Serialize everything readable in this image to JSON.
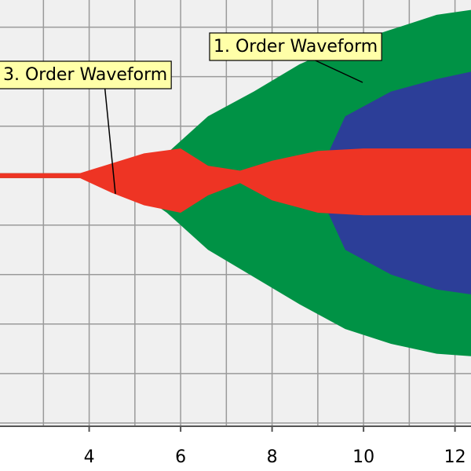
{
  "chart_data": {
    "type": "area",
    "title": "",
    "xlabel": "",
    "ylabel": "",
    "xlim": [
      2.05,
      12.35
    ],
    "ylim": [
      -5.05,
      3.55
    ],
    "grid": true,
    "x_ticks": [
      4,
      6,
      8,
      10,
      12
    ],
    "colors": {
      "plot_background": "#f0f0f0",
      "gridline": "#9a9a9a",
      "axis": "#555555",
      "order1": "#009245",
      "order2": "#2c3e98",
      "order3": "#ee3424",
      "callout_fill": "#ffffa8"
    },
    "series": [
      {
        "name": "1. Order Waveform",
        "color": "#009245",
        "x": [
          2.05,
          4.0,
          5.0,
          5.7,
          6.6,
          7.6,
          8.6,
          9.6,
          10.6,
          11.6,
          12.35
        ],
        "upper": [
          0.05,
          0.05,
          0.2,
          0.45,
          1.2,
          1.7,
          2.25,
          2.65,
          2.95,
          3.25,
          3.35
        ],
        "lower": [
          -0.05,
          -0.05,
          -0.3,
          -0.75,
          -1.5,
          -2.05,
          -2.6,
          -3.1,
          -3.4,
          -3.6,
          -3.65
        ]
      },
      {
        "name": "",
        "color": "#2c3e98",
        "x": [
          9.2,
          9.6,
          10.6,
          11.6,
          12.35
        ],
        "upper": [
          0.4,
          1.2,
          1.7,
          1.95,
          2.1
        ],
        "lower": [
          -0.7,
          -1.5,
          -2.0,
          -2.3,
          -2.4
        ]
      },
      {
        "name": "3. Order Waveform",
        "color": "#ee3424",
        "x": [
          2.05,
          3.8,
          4.5,
          5.2,
          6.0,
          6.6,
          7.3,
          8.0,
          9.0,
          10.0,
          11.0,
          12.35
        ],
        "upper": [
          0.05,
          0.05,
          0.25,
          0.45,
          0.55,
          0.2,
          0.1,
          0.3,
          0.5,
          0.55,
          0.55,
          0.55
        ],
        "lower": [
          -0.05,
          -0.05,
          -0.35,
          -0.6,
          -0.75,
          -0.4,
          -0.15,
          -0.5,
          -0.75,
          -0.8,
          -0.8,
          -0.8
        ]
      }
    ],
    "annotations": [
      {
        "text": "1. Order Waveform",
        "series": "1. Order Waveform"
      },
      {
        "text": "3. Order Waveform",
        "series": "3. Order Waveform"
      }
    ]
  }
}
